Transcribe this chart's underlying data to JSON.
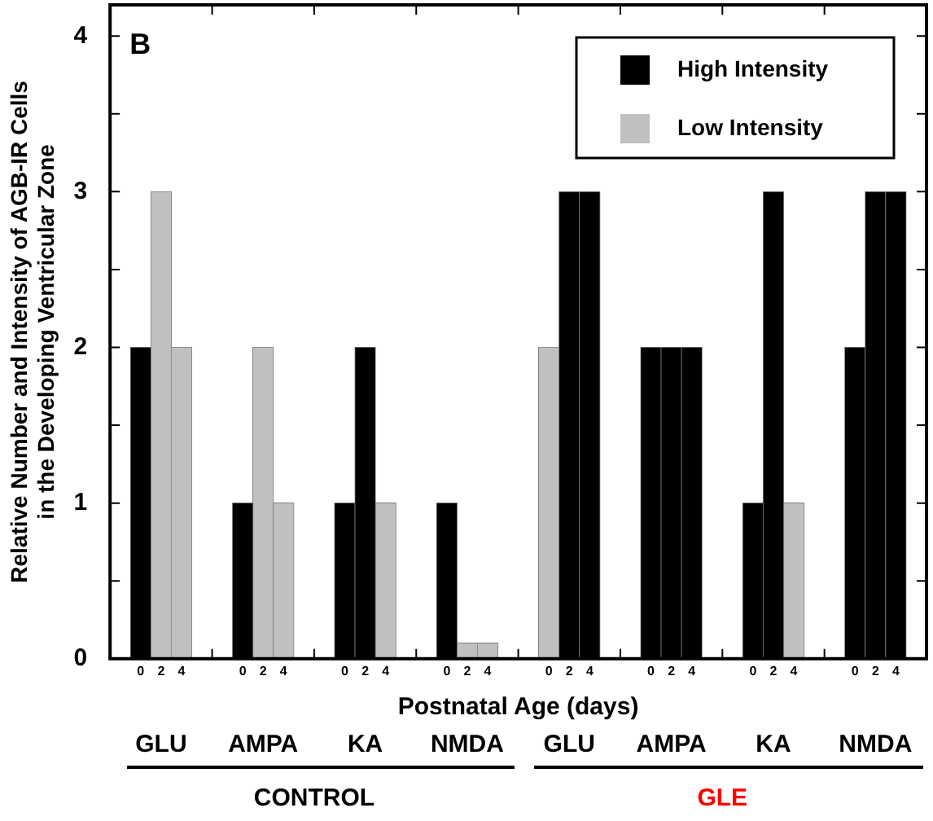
{
  "chart_data": {
    "type": "bar",
    "stacked": true,
    "categories": [
      null,
      "0",
      "2",
      "4",
      null,
      null,
      "0",
      "2",
      "4",
      null,
      null,
      "0",
      "2",
      "4",
      null,
      null,
      "0",
      "2",
      "4",
      null,
      null,
      "0",
      "2",
      "4",
      null,
      null,
      "0",
      "2",
      "4",
      null,
      null,
      "0",
      "2",
      "4",
      null,
      null,
      "0",
      "2",
      "4",
      null
    ],
    "series": [
      {
        "name": "High Intensity",
        "color": "#000000",
        "values": [
          null,
          2,
          null,
          null,
          null,
          null,
          1,
          null,
          null,
          null,
          null,
          1,
          2,
          null,
          null,
          null,
          1,
          null,
          null,
          null,
          null,
          null,
          3,
          3,
          null,
          null,
          2,
          2,
          2,
          null,
          null,
          1,
          3,
          null,
          null,
          null,
          2,
          3,
          3,
          null
        ]
      },
      {
        "name": "Low Intensity",
        "color": "#c0c0c0",
        "values": [
          null,
          null,
          3,
          2,
          null,
          null,
          null,
          2,
          1,
          null,
          null,
          null,
          null,
          1,
          null,
          null,
          null,
          0.1,
          0.1,
          null,
          null,
          2,
          null,
          null,
          null,
          null,
          null,
          null,
          null,
          null,
          null,
          null,
          null,
          1,
          null,
          null,
          null,
          null,
          null,
          null
        ]
      }
    ],
    "ylim": [
      0,
      4.2
    ],
    "yticks": [
      0,
      {
        "value": 0.5,
        "label": null
      },
      1,
      {
        "value": 1.5,
        "label": null
      },
      2,
      {
        "value": 2.5,
        "label": null
      },
      3,
      {
        "value": 3.5,
        "label": null
      },
      4
    ],
    "ylabel": "Relative Number and Intensity of AGB-IR Cells\nin the Developing Ventricular Zone",
    "xlabel": "Postnatal Age (days)",
    "legend": "top right",
    "grid": false,
    "annotations": [
      "B",
      "GLU",
      "AMPA",
      "KA",
      "NMDA",
      "GLU",
      "AMPA",
      "KA",
      "NMDA",
      "CONTROL",
      "GLE"
    ]
  }
}
